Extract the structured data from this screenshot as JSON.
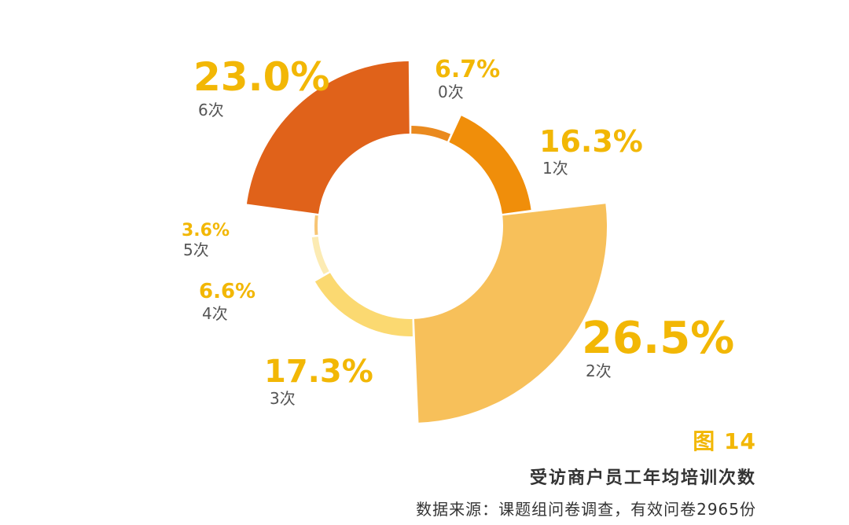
{
  "chart_data": {
    "type": "pie",
    "title": "受访商户员工年均培训次数",
    "categories": [
      "0次",
      "1次",
      "2次",
      "3次",
      "4次",
      "5次",
      "6次"
    ],
    "values": [
      6.7,
      16.3,
      26.5,
      17.3,
      6.6,
      3.6,
      23.0
    ],
    "value_labels": [
      "6.7%",
      "16.3%",
      "26.5%",
      "17.3%",
      "6.6%",
      "3.6%",
      "23.0%"
    ],
    "colors": [
      "#ea8a1f",
      "#f08e0a",
      "#f7c05a",
      "#fbd971",
      "#fcebb3",
      "#f7c575",
      "#e0621a"
    ],
    "variant": "variable-radius donut (rose)"
  },
  "figure": {
    "number": "图 14",
    "title": "受访商户员工年均培训次数",
    "source": "数据来源：课题组问卷调查，有效问卷2965份"
  }
}
